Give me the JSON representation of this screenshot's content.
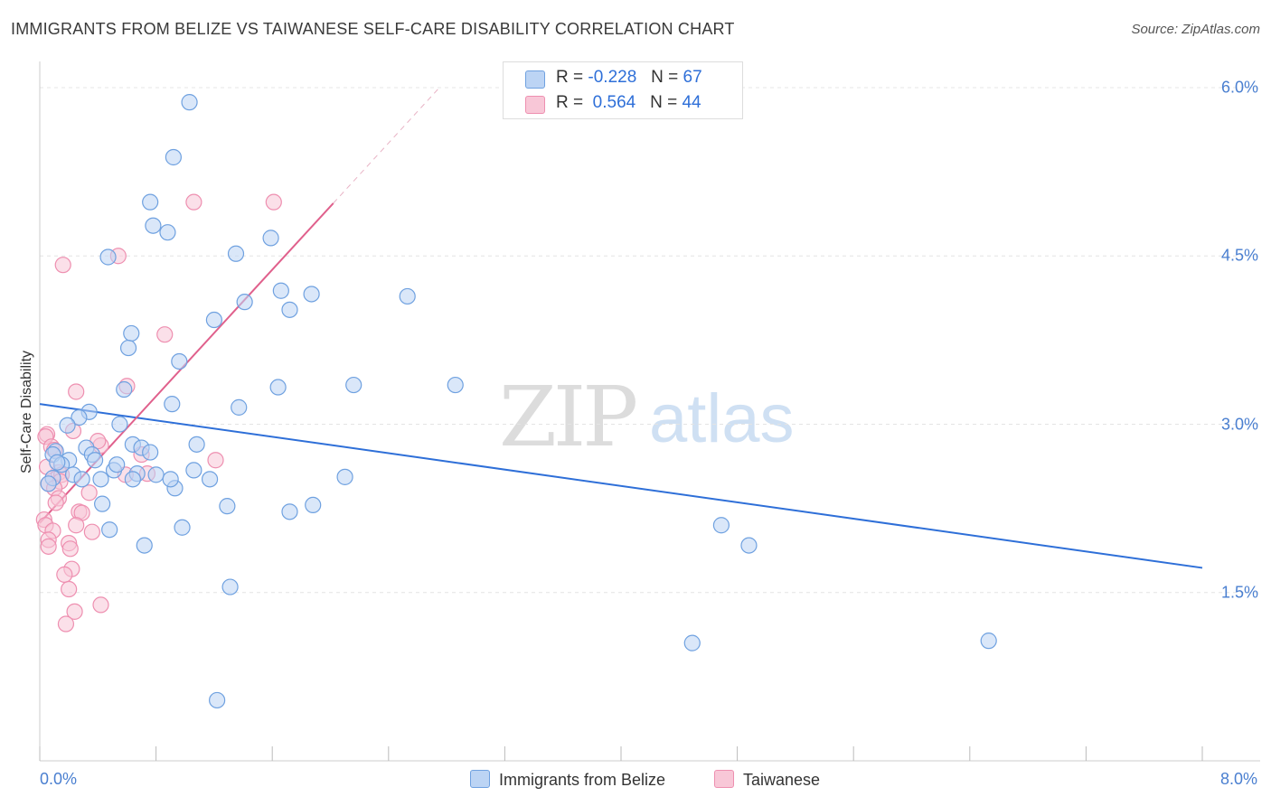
{
  "title": "IMMIGRANTS FROM BELIZE VS TAIWANESE SELF-CARE DISABILITY CORRELATION CHART",
  "source": "Source: ZipAtlas.com",
  "watermark": {
    "part1": "ZIP",
    "part2": "atlas"
  },
  "legend": {
    "row1": {
      "r_label": "R =",
      "r_value": "-0.228",
      "n_label": "N =",
      "n_value": "67"
    },
    "row2": {
      "r_label": "R =",
      "r_value": "0.564",
      "n_label": "N =",
      "n_value": "44"
    }
  },
  "colors": {
    "blue": "#6fa1e0",
    "blue_fill": "#bcd4f4",
    "blue_line": "#2e6fd8",
    "pink": "#ee8fb0",
    "pink_fill": "#f8c7d7",
    "pink_line": "#e0608c"
  },
  "chart_data": {
    "type": "scatter",
    "title": "IMMIGRANTS FROM BELIZE VS TAIWANESE SELF-CARE DISABILITY CORRELATION CHART",
    "xlabel": "",
    "ylabel": "Self-Care Disability",
    "xlim": [
      0,
      8.0
    ],
    "ylim": [
      0,
      6.0
    ],
    "x_tick_labels": [
      "0.0%",
      "8.0%"
    ],
    "y_ticks": [
      1.5,
      3.0,
      4.5,
      6.0
    ],
    "y_tick_labels": [
      "1.5%",
      "3.0%",
      "4.5%",
      "6.0%"
    ],
    "legend_position": "top-center",
    "series": [
      {
        "name": "Immigrants from Belize",
        "r": -0.228,
        "n": 67,
        "trend": {
          "x": [
            0.0,
            8.0
          ],
          "y": [
            3.18,
            1.72
          ]
        },
        "points": [
          [
            1.03,
            5.87
          ],
          [
            0.92,
            5.38
          ],
          [
            0.76,
            4.98
          ],
          [
            0.78,
            4.77
          ],
          [
            0.88,
            4.71
          ],
          [
            0.47,
            4.49
          ],
          [
            1.35,
            4.52
          ],
          [
            1.59,
            4.66
          ],
          [
            1.66,
            4.19
          ],
          [
            1.87,
            4.16
          ],
          [
            2.53,
            4.14
          ],
          [
            1.41,
            4.09
          ],
          [
            1.2,
            3.93
          ],
          [
            1.72,
            4.02
          ],
          [
            0.63,
            3.81
          ],
          [
            0.61,
            3.68
          ],
          [
            0.96,
            3.56
          ],
          [
            0.58,
            3.31
          ],
          [
            1.64,
            3.33
          ],
          [
            2.16,
            3.35
          ],
          [
            2.86,
            3.35
          ],
          [
            0.91,
            3.18
          ],
          [
            1.37,
            3.15
          ],
          [
            0.34,
            3.11
          ],
          [
            0.27,
            3.06
          ],
          [
            0.19,
            2.99
          ],
          [
            0.55,
            3.0
          ],
          [
            0.64,
            2.82
          ],
          [
            0.32,
            2.79
          ],
          [
            1.08,
            2.82
          ],
          [
            0.7,
            2.79
          ],
          [
            0.11,
            2.76
          ],
          [
            0.36,
            2.73
          ],
          [
            0.09,
            2.73
          ],
          [
            0.2,
            2.68
          ],
          [
            0.38,
            2.68
          ],
          [
            0.15,
            2.64
          ],
          [
            0.12,
            2.66
          ],
          [
            0.23,
            2.55
          ],
          [
            0.09,
            2.52
          ],
          [
            0.29,
            2.51
          ],
          [
            0.51,
            2.59
          ],
          [
            0.53,
            2.64
          ],
          [
            0.67,
            2.56
          ],
          [
            1.06,
            2.59
          ],
          [
            0.8,
            2.55
          ],
          [
            1.17,
            2.51
          ],
          [
            0.64,
            2.51
          ],
          [
            0.42,
            2.51
          ],
          [
            0.06,
            2.47
          ],
          [
            2.1,
            2.53
          ],
          [
            0.93,
            2.43
          ],
          [
            0.43,
            2.29
          ],
          [
            1.29,
            2.27
          ],
          [
            1.88,
            2.28
          ],
          [
            1.72,
            2.22
          ],
          [
            0.48,
            2.06
          ],
          [
            0.98,
            2.08
          ],
          [
            0.72,
            1.92
          ],
          [
            4.69,
            2.1
          ],
          [
            4.88,
            1.92
          ],
          [
            1.31,
            1.55
          ],
          [
            4.49,
            1.05
          ],
          [
            6.53,
            1.07
          ],
          [
            1.22,
            0.54
          ],
          [
            0.9,
            2.51
          ],
          [
            0.76,
            2.75
          ]
        ]
      },
      {
        "name": "Taiwanese",
        "r": 0.564,
        "n": 44,
        "trend": {
          "x": [
            0.0,
            2.02
          ],
          "y": [
            2.12,
            4.97
          ]
        },
        "trend_dashed": {
          "x": [
            2.02,
            2.75
          ],
          "y": [
            4.97,
            6.0
          ]
        },
        "points": [
          [
            1.06,
            4.98
          ],
          [
            1.61,
            4.98
          ],
          [
            0.54,
            4.5
          ],
          [
            0.16,
            4.42
          ],
          [
            0.86,
            3.8
          ],
          [
            0.6,
            3.34
          ],
          [
            0.25,
            3.29
          ],
          [
            0.05,
            2.91
          ],
          [
            0.23,
            2.94
          ],
          [
            0.04,
            2.89
          ],
          [
            0.42,
            2.81
          ],
          [
            0.08,
            2.8
          ],
          [
            0.1,
            2.77
          ],
          [
            0.7,
            2.73
          ],
          [
            1.21,
            2.68
          ],
          [
            0.13,
            2.57
          ],
          [
            0.15,
            2.55
          ],
          [
            0.59,
            2.55
          ],
          [
            0.74,
            2.56
          ],
          [
            0.06,
            2.47
          ],
          [
            0.14,
            2.49
          ],
          [
            0.1,
            2.43
          ],
          [
            0.13,
            2.34
          ],
          [
            0.11,
            2.3
          ],
          [
            0.27,
            2.22
          ],
          [
            0.29,
            2.21
          ],
          [
            0.03,
            2.15
          ],
          [
            0.04,
            2.1
          ],
          [
            0.25,
            2.1
          ],
          [
            0.09,
            2.05
          ],
          [
            0.36,
            2.04
          ],
          [
            0.06,
            1.97
          ],
          [
            0.2,
            1.94
          ],
          [
            0.21,
            1.89
          ],
          [
            0.06,
            1.91
          ],
          [
            0.22,
            1.71
          ],
          [
            0.17,
            1.66
          ],
          [
            0.2,
            1.53
          ],
          [
            0.42,
            1.39
          ],
          [
            0.24,
            1.33
          ],
          [
            0.18,
            1.22
          ],
          [
            0.05,
            2.62
          ],
          [
            0.4,
            2.85
          ],
          [
            0.34,
            2.39
          ]
        ]
      }
    ]
  }
}
